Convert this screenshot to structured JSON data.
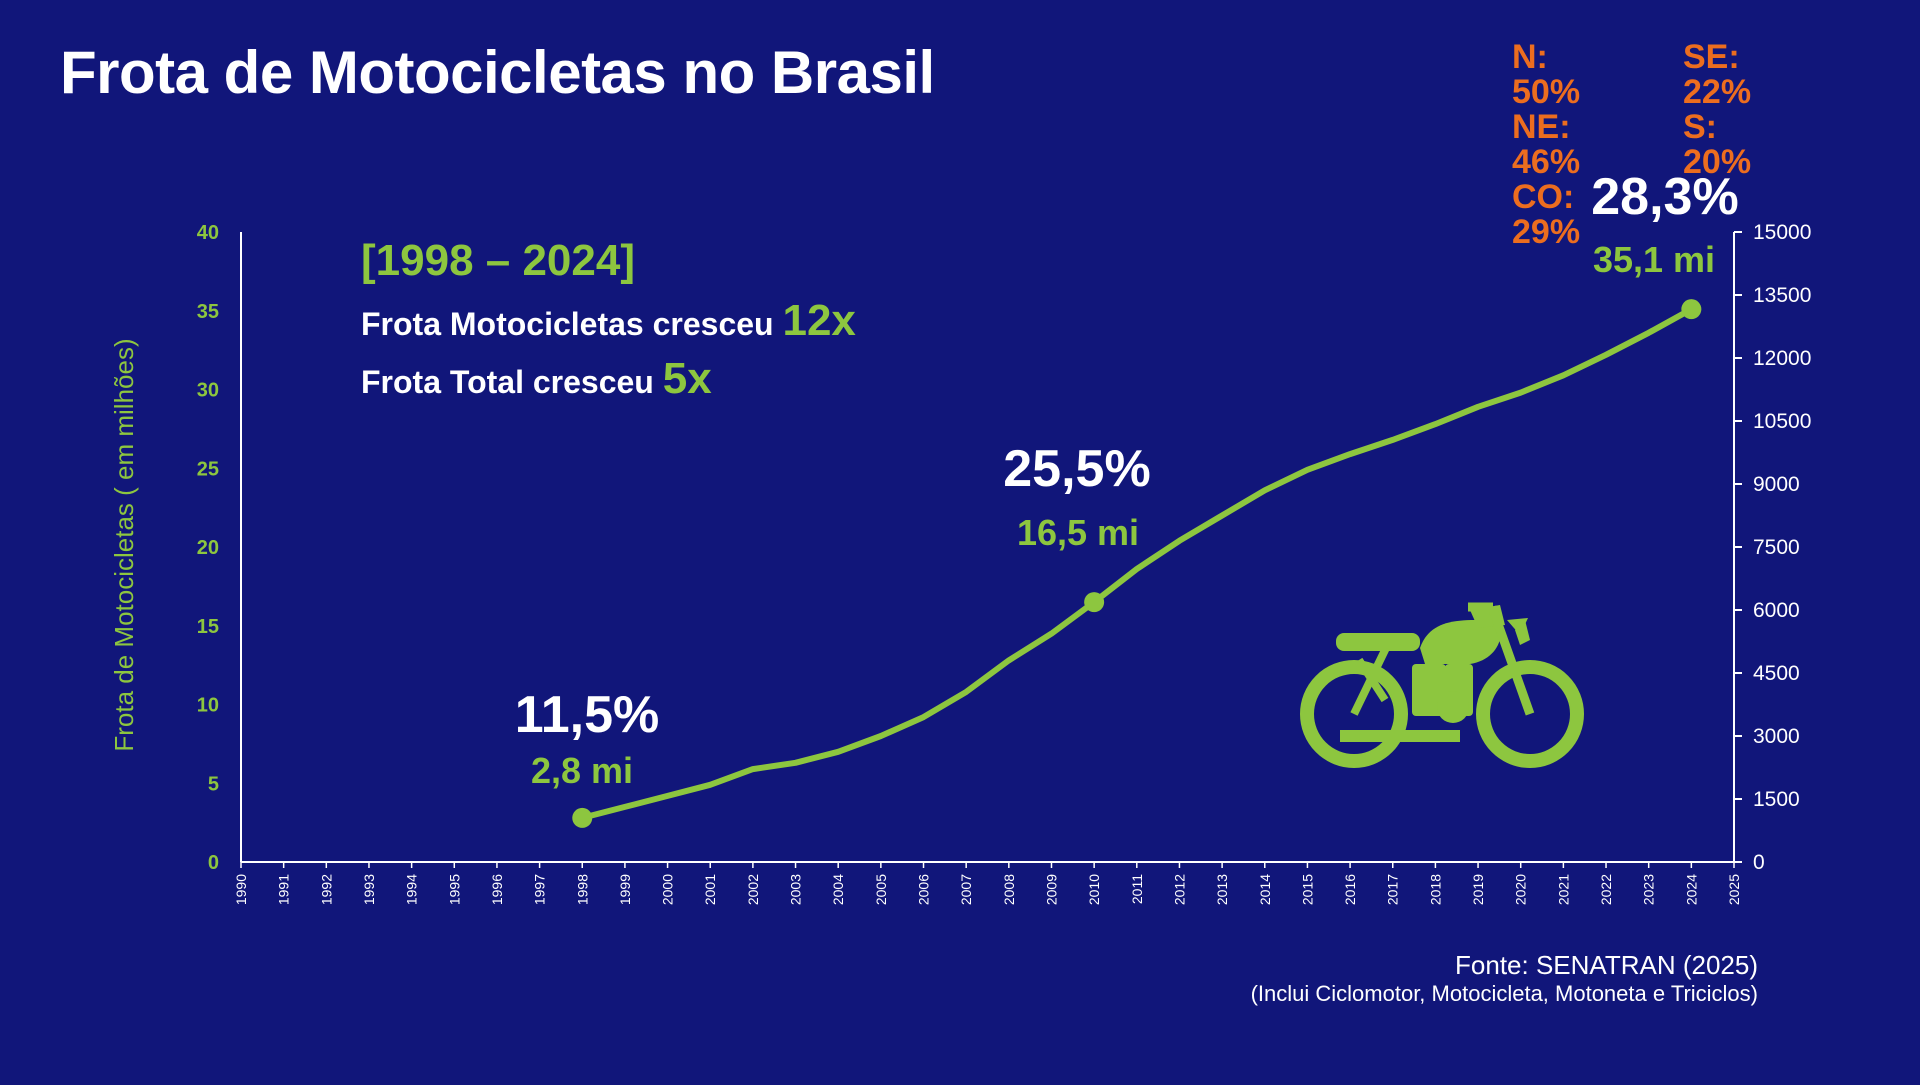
{
  "page": {
    "title": "Frota de Motocicletas no Brasil"
  },
  "regions_left": [
    {
      "label": "N:",
      "value": "50%"
    },
    {
      "label": "NE:",
      "value": "46%"
    },
    {
      "label": "CO:",
      "value": "29%"
    }
  ],
  "regions_right": [
    {
      "label": "SE:",
      "value": "22%"
    },
    {
      "label": "S:",
      "value": "20%"
    }
  ],
  "highlight": {
    "period": "[1998 – 2024]",
    "line1_text": "Frota Motocicletas cresceu ",
    "line1_value": "12x",
    "line2_text": "Frota Total cresceu ",
    "line2_value": "5x"
  },
  "annotations": [
    {
      "year": 1998,
      "percent": "11,5%",
      "fleet": "2,8 mi"
    },
    {
      "year": 2010,
      "percent": "25,5%",
      "fleet": "16,5 mi"
    },
    {
      "year": 2024,
      "percent": "28,3%",
      "fleet": "35,1 mi"
    }
  ],
  "source": "Fonte: SENATRAN (2025)",
  "note": "(Inclui Ciclomotor, Motocicleta, Motoneta e Triciclos)",
  "colors": {
    "background": "#11167a",
    "accent_green": "#8dc63f",
    "orange": "#ec6d1f",
    "white": "#ffffff"
  },
  "icons": [
    "motorcycle-icon"
  ],
  "chart_data": {
    "type": "line",
    "x": [
      1998,
      1999,
      2000,
      2001,
      2002,
      2003,
      2004,
      2005,
      2006,
      2007,
      2008,
      2009,
      2010,
      2011,
      2012,
      2013,
      2014,
      2015,
      2016,
      2017,
      2018,
      2019,
      2020,
      2021,
      2022,
      2023,
      2024
    ],
    "series": [
      {
        "values": [
          2.8,
          3.5,
          4.2,
          4.9,
          5.9,
          6.3,
          7.0,
          8.0,
          9.2,
          10.8,
          12.8,
          14.5,
          16.5,
          18.6,
          20.4,
          22.0,
          23.6,
          24.9,
          25.9,
          26.8,
          27.8,
          28.9,
          29.8,
          30.9,
          32.2,
          33.6,
          35.1
        ]
      }
    ],
    "xticks": [
      "1990",
      "1991",
      "1992",
      "1993",
      "1994",
      "1995",
      "1996",
      "1997",
      "1998",
      "1999",
      "2000",
      "2001",
      "2002",
      "2003",
      "2004",
      "2005",
      "2006",
      "2007",
      "2008",
      "2009",
      "2010",
      "2011",
      "2012",
      "2013",
      "2014",
      "2015",
      "2016",
      "2017",
      "2018",
      "2019",
      "2020",
      "2021",
      "2022",
      "2023",
      "2024",
      "2025"
    ],
    "xlim": [
      1990,
      2025
    ],
    "ylabel": "Frota de Motocicletas ( em milhões)",
    "yticks": [
      "0",
      "5",
      "10",
      "15",
      "20",
      "25",
      "30",
      "35",
      "40"
    ],
    "ylim": [
      0,
      40
    ],
    "y2ticks": [
      "0",
      "1500",
      "3000",
      "4500",
      "6000",
      "7500",
      "9000",
      "10500",
      "12000",
      "13500",
      "15000"
    ],
    "y2lim": [
      0,
      15000
    ],
    "grid": false,
    "legend": "none"
  }
}
